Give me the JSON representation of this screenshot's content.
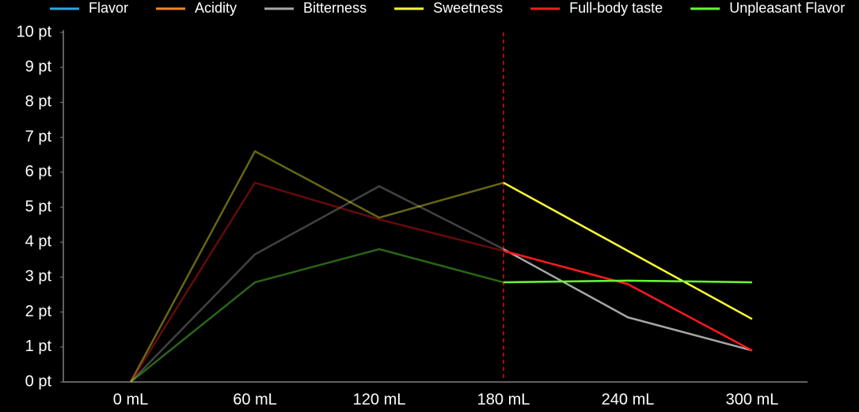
{
  "chart_data": {
    "type": "line",
    "categories": [
      "0 mL",
      "60 mL",
      "120 mL",
      "180 mL",
      "240 mL",
      "300 mL"
    ],
    "series": [
      {
        "name": "Flavor",
        "color": "#29a8e0",
        "values": [
          null,
          null,
          null,
          null,
          null,
          null
        ]
      },
      {
        "name": "Acidity",
        "color": "#f08a24",
        "values": [
          null,
          null,
          null,
          null,
          null,
          null
        ]
      },
      {
        "name": "Bitterness",
        "color": "#a6a6a6",
        "values": [
          0,
          3.65,
          5.6,
          3.8,
          1.85,
          0.9
        ]
      },
      {
        "name": "Sweetness",
        "color": "#ffff33",
        "values": [
          0,
          6.6,
          4.7,
          5.7,
          3.75,
          1.8
        ]
      },
      {
        "name": "Full-body taste",
        "color": "#ff1a1a",
        "values": [
          0,
          5.7,
          4.65,
          3.75,
          2.8,
          0.9
        ]
      },
      {
        "name": "Unpleasant Flavor",
        "color": "#66ff33",
        "values": [
          0,
          2.85,
          3.8,
          2.85,
          2.9,
          2.85
        ]
      }
    ],
    "ylim": [
      0,
      10
    ],
    "yticks": [
      {
        "value": 0,
        "label": "0 pt"
      },
      {
        "value": 1,
        "label": "1 pt"
      },
      {
        "value": 2,
        "label": "2 pt"
      },
      {
        "value": 3,
        "label": "3 pt"
      },
      {
        "value": 4,
        "label": "4 pt"
      },
      {
        "value": 5,
        "label": "5 pt"
      },
      {
        "value": 6,
        "label": "6 pt"
      },
      {
        "value": 7,
        "label": "7 pt"
      },
      {
        "value": 8,
        "label": "8 pt"
      },
      {
        "value": 9,
        "label": "9 pt"
      },
      {
        "value": 10,
        "label": "10 pt"
      }
    ],
    "grid": false,
    "legend": "top",
    "reference_line": {
      "x": "180 mL",
      "color": "#e01010",
      "dashed": true
    }
  }
}
